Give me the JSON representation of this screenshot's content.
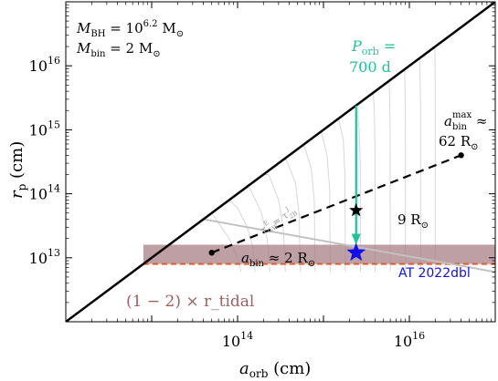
{
  "chart_data": {
    "type": "line",
    "xlabel": "a_orb (cm)",
    "ylabel": "r_p (cm)",
    "xscale": "log",
    "yscale": "log",
    "xlim": [
      1000000000000.0,
      1e+17
    ],
    "ylim": [
      1000000000000.0,
      1e+17
    ],
    "x_ticks": [
      {
        "value": 100000000000000.0,
        "base": "10",
        "exp": "14"
      },
      {
        "value": 1e+16,
        "base": "10",
        "exp": "16"
      }
    ],
    "y_ticks": [
      {
        "value": 10000000000000.0,
        "base": "10",
        "exp": "13"
      },
      {
        "value": 100000000000000.0,
        "base": "10",
        "exp": "14"
      },
      {
        "value": 1000000000000000.0,
        "base": "10",
        "exp": "15"
      },
      {
        "value": 1e+16,
        "base": "10",
        "exp": "16"
      }
    ],
    "params": [
      {
        "sym": "M",
        "sub": "BH",
        "rel": " = 10",
        "sup": "6.2",
        "unit": " M",
        "usub": "⊙"
      },
      {
        "sym": "M",
        "sub": "bin",
        "rel": " = 2 M",
        "sup": "",
        "unit": "",
        "usub": "⊙"
      }
    ],
    "diagonal": {
      "name": "r_p = a_orb",
      "points": [
        [
          1000000000000.0,
          1000000000000.0
        ],
        [
          1e+17,
          1e+17
        ]
      ],
      "color": "#000000"
    },
    "tidal_band": {
      "y_range": [
        8000000000000.0,
        16000000000000.0
      ],
      "x_start": 8000000000000.0,
      "color": "#a87f84",
      "label": "(1 − 2) × r_tidal"
    },
    "tidal_dashed": {
      "y": 8000000000000.0,
      "x_start": 8000000000000.0,
      "color": "#e55a2b"
    },
    "gw_line": {
      "points": [
        [
          40000000000000.0,
          40000000000000.0
        ],
        [
          1e+17,
          6000000000000.0
        ]
      ],
      "color": "#c2c2c2",
      "label_left": "τ",
      "label_sub1": "GW",
      "label_sup1": "E",
      "label_rel": " ≈ τ",
      "label_sub2": "2B",
      "label_sup2": "J"
    },
    "gw_curves": {
      "color": "#d7d7d7",
      "curves": [
        [
          [
            110000000000000.0,
            6000000000000.0
          ],
          [
            100000000000000.0,
            10000000000000.0
          ],
          [
            80000000000000.0,
            20000000000000.0
          ],
          [
            60000000000000.0,
            35000000000000.0
          ],
          [
            50000000000000.0,
            50000000000000.0
          ]
        ],
        [
          [
            160000000000000.0,
            6000000000000.0
          ],
          [
            150000000000000.0,
            15000000000000.0
          ],
          [
            130000000000000.0,
            30000000000000.0
          ],
          [
            100000000000000.0,
            60000000000000.0
          ],
          [
            80000000000000.0,
            80000000000000.0
          ]
        ],
        [
          [
            240000000000000.0,
            6000000000000.0
          ],
          [
            220000000000000.0,
            20000000000000.0
          ],
          [
            190000000000000.0,
            50000000000000.0
          ],
          [
            140000000000000.0,
            120000000000000.0
          ],
          [
            125000000000000.0,
            125000000000000.0
          ]
        ],
        [
          [
            360000000000000.0,
            6000000000000.0
          ],
          [
            340000000000000.0,
            30000000000000.0
          ],
          [
            300000000000000.0,
            80000000000000.0
          ],
          [
            230000000000000.0,
            200000000000000.0
          ],
          [
            200000000000000.0,
            200000000000000.0
          ]
        ],
        [
          [
            540000000000000.0,
            6000000000000.0
          ],
          [
            520000000000000.0,
            50000000000000.0
          ],
          [
            470000000000000.0,
            150000000000000.0
          ],
          [
            370000000000000.0,
            340000000000000.0
          ],
          [
            330000000000000.0,
            330000000000000.0
          ]
        ],
        [
          [
            800000000000000.0,
            6000000000000.0
          ],
          [
            780000000000000.0,
            80000000000000.0
          ],
          [
            720000000000000.0,
            250000000000000.0
          ],
          [
            600000000000000.0,
            550000000000000.0
          ],
          [
            550000000000000.0,
            550000000000000.0
          ]
        ],
        [
          [
            1200000000000000.0,
            6000000000000.0
          ],
          [
            1180000000000000.0,
            120000000000000.0
          ],
          [
            1100000000000000.0,
            400000000000000.0
          ],
          [
            950000000000000.0,
            900000000000000.0
          ],
          [
            900000000000000.0,
            900000000000000.0
          ]
        ],
        [
          [
            1800000000000000.0,
            6000000000000.0
          ],
          [
            1780000000000000.0,
            200000000000000.0
          ],
          [
            1700000000000000.0,
            700000000000000.0
          ],
          [
            1500000000000000.0,
            1450000000000000.0
          ]
        ],
        [
          [
            2700000000000000.0,
            6000000000000.0
          ],
          [
            2680000000000000.0,
            300000000000000.0
          ],
          [
            2600000000000000.0,
            1100000000000000.0
          ],
          [
            2400000000000000.0,
            2350000000000000.0
          ]
        ],
        [
          [
            4000000000000000.0,
            6000000000000.0
          ],
          [
            3980000000000000.0,
            500000000000000.0
          ],
          [
            3900000000000000.0,
            2000000000000000.0
          ],
          [
            3800000000000000.0,
            3750000000000000.0
          ]
        ],
        [
          [
            6000000000000000.0,
            6000000000000.0
          ],
          [
            5980000000000000.0,
            800000000000000.0
          ],
          [
            5900000000000000.0,
            3000000000000000.0
          ],
          [
            5800000000000000.0,
            5750000000000000.0
          ]
        ],
        [
          [
            9000000000000000.0,
            6000000000000.0
          ],
          [
            8980000000000000.0,
            1200000000000000.0
          ],
          [
            8900000000000000.0,
            5000000000000000.0
          ],
          [
            8800000000000000.0,
            8750000000000000.0
          ]
        ],
        [
          [
            1.35e+16,
            6000000000000.0
          ],
          [
            1.35e+16,
            2000000000000000.0
          ],
          [
            1.33e+16,
            8000000000000000.0
          ],
          [
            1.32e+16,
            1.3e+16
          ]
        ],
        [
          [
            2e+16,
            6000000000000.0
          ],
          [
            2e+16,
            3000000000000000.0
          ],
          [
            1.99e+16,
            1.2e+16
          ],
          [
            1.98e+16,
            1.95e+16
          ]
        ]
      ]
    },
    "porb_line": {
      "x": 2400000000000000.0,
      "y_top": 2400000000000000.0,
      "y_bottom": 16000000000000.0,
      "color": "#1cc49a",
      "label_sym": "P",
      "label_sub": "orb",
      "label_rel": " =",
      "label_val": "700 d"
    },
    "binary_line": {
      "points": [
        [
          50000000000000.0,
          12000000000000.0
        ],
        [
          4e+16,
          400000000000000.0
        ]
      ],
      "color": "#000000",
      "style": "dashed"
    },
    "points": [
      {
        "name": "a_bin ≈ 2 R_sun",
        "x": 50000000000000.0,
        "y": 12000000000000.0,
        "marker": "dot",
        "color": "#000000",
        "label_pre": "a",
        "label_sub": "bin",
        "label_rel": " ≈ 2 R",
        "label_usub": "⊙"
      },
      {
        "name": "9 R_sun",
        "x": 2400000000000000.0,
        "y": 55000000000000.0,
        "marker": "star",
        "color": "#000000",
        "label_pre": "9 R",
        "label_usub": "⊙"
      },
      {
        "name": "a_bin_max ≈ 62 R_sun",
        "x": 4e+16,
        "y": 400000000000000.0,
        "marker": "dot",
        "color": "#000000",
        "label_pre": "a",
        "label_sub": "bin",
        "label_sup": "max",
        "label_rel": " ≈",
        "label_line2": "62 R",
        "label_usub": "⊙"
      },
      {
        "name": "AT 2022dbl",
        "x": 2400000000000000.0,
        "y": 12000000000000.0,
        "marker": "star",
        "color": "#1010ee",
        "label": "AT 2022dbl"
      }
    ]
  }
}
